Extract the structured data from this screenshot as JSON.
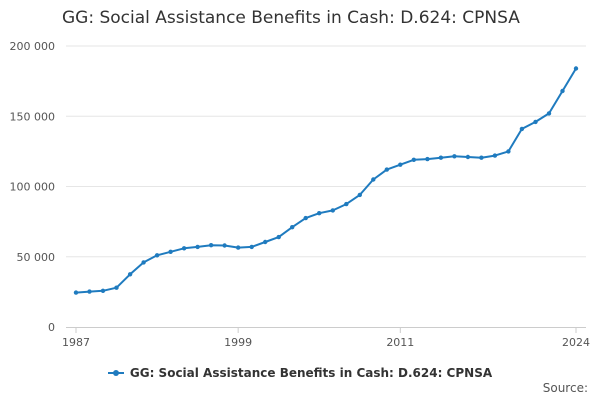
{
  "chart_data": {
    "type": "line",
    "title": "GG: Social Assistance Benefits in Cash: D.624: CPNSA",
    "xlabel": "",
    "ylabel": "",
    "x": [
      1987,
      1988,
      1989,
      1990,
      1991,
      1992,
      1993,
      1994,
      1995,
      1996,
      1997,
      1998,
      1999,
      2000,
      2001,
      2002,
      2003,
      2004,
      2005,
      2006,
      2007,
      2008,
      2009,
      2010,
      2011,
      2012,
      2013,
      2014,
      2015,
      2016,
      2017,
      2018,
      2019,
      2020,
      2021,
      2022,
      2023,
      2024
    ],
    "series": [
      {
        "name": "GG: Social Assistance Benefits in Cash: D.624: CPNSA",
        "color": "#1f7bbf",
        "values": [
          24500,
          25200,
          25800,
          28000,
          37500,
          46000,
          51000,
          53500,
          56000,
          57000,
          58200,
          58000,
          56500,
          57000,
          60500,
          64000,
          71000,
          77500,
          81000,
          83000,
          87500,
          94000,
          105000,
          112000,
          115500,
          119000,
          119500,
          120500,
          121500,
          121000,
          120500,
          122000,
          125000,
          141000,
          146000,
          152000,
          168000,
          184000
        ]
      }
    ],
    "xticks": [
      "1987",
      "1999",
      "2011",
      "2024"
    ],
    "yticks": [
      "0",
      "50 000",
      "100 000",
      "150 000",
      "200 000"
    ],
    "ylim": [
      0,
      200000
    ],
    "xlim": [
      1987,
      2024
    ],
    "grid": true,
    "legend": "bottom-center",
    "source_label": "Source:"
  }
}
